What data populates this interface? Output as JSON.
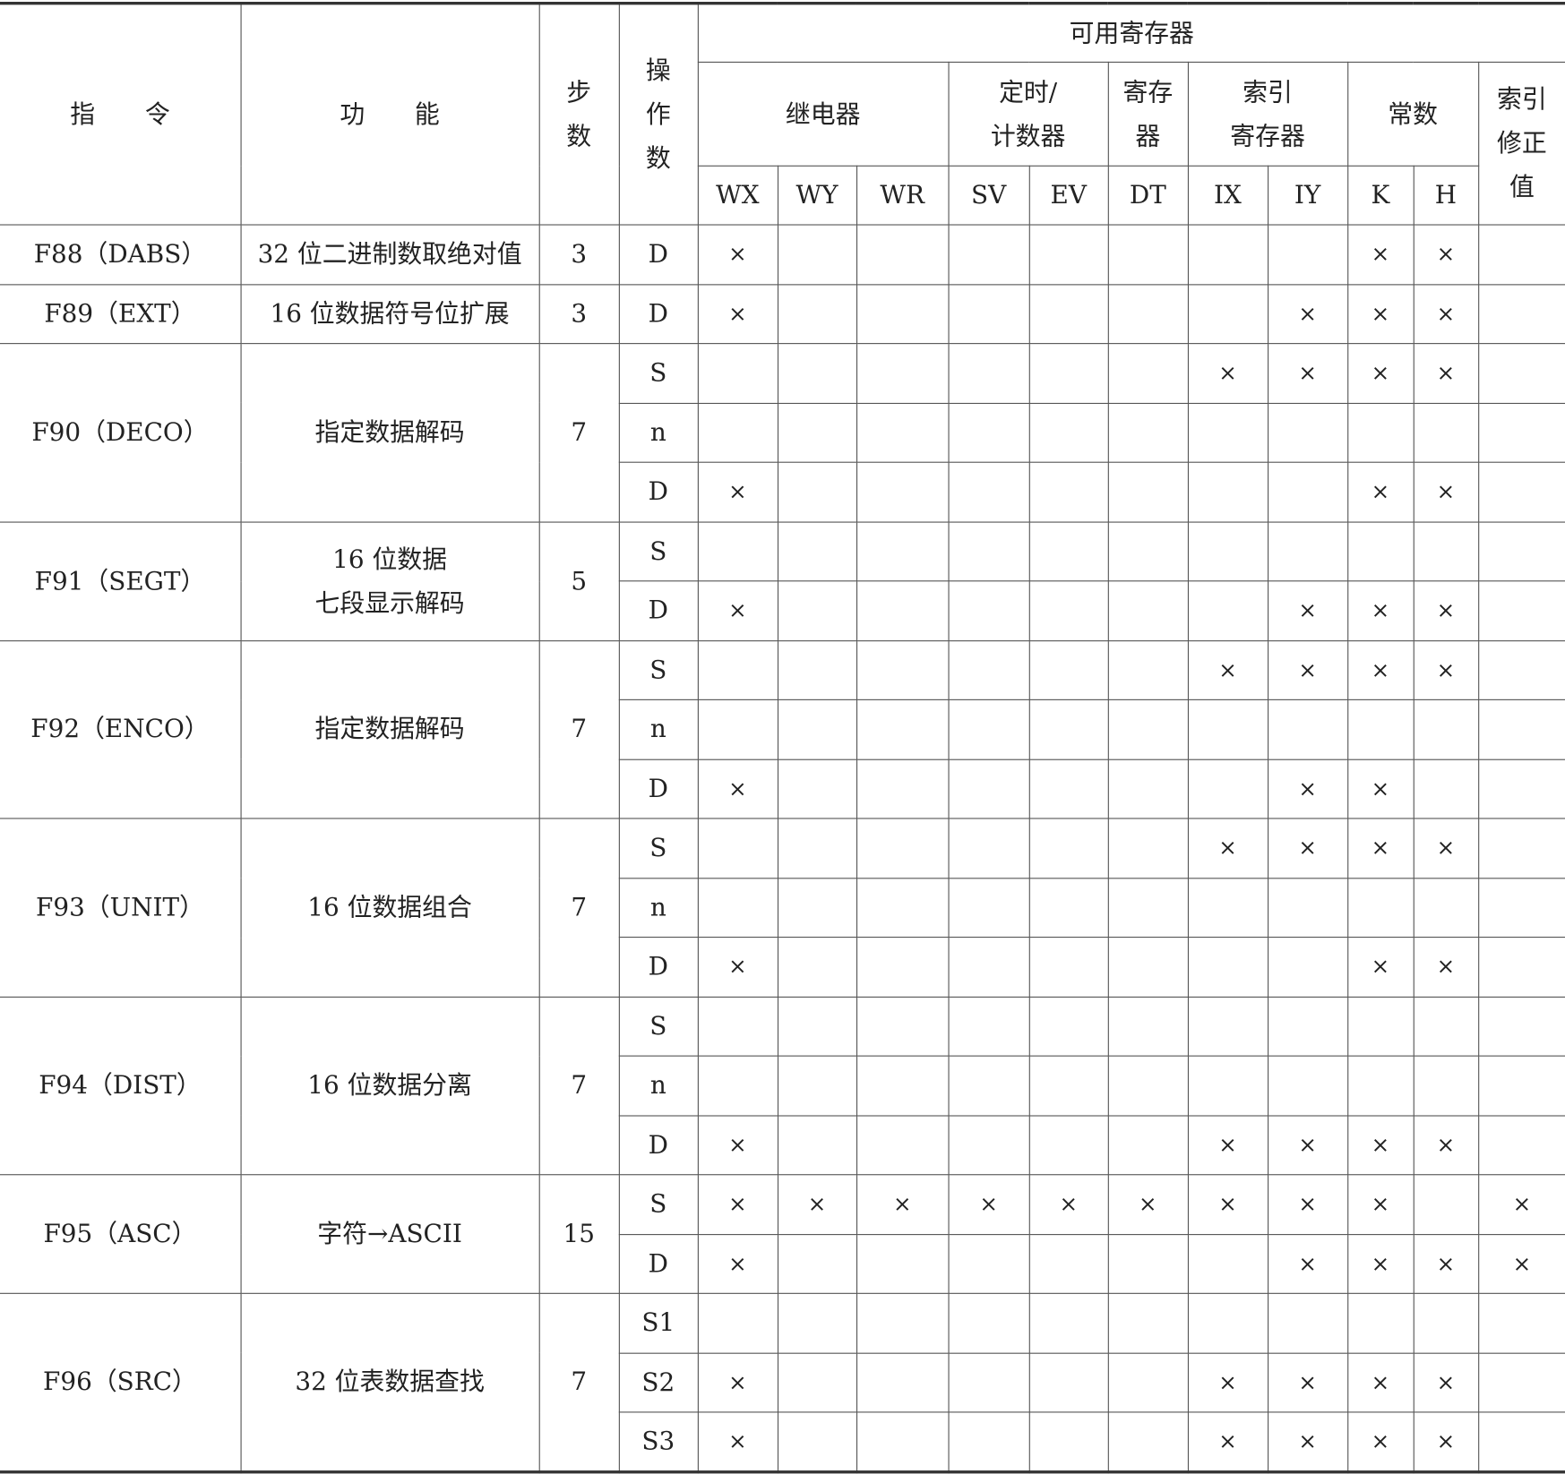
{
  "header": {
    "instruction": "指　　令",
    "function": "功　　能",
    "steps": "步\n数",
    "operand": "操\n作\n数",
    "available_registers": "可用寄存器",
    "groups": [
      {
        "label": "继电器",
        "span": 3
      },
      {
        "label": "定时/\n计数器",
        "span": 2
      },
      {
        "label": "寄存\n器",
        "span": 1
      },
      {
        "label": "索引\n寄存器",
        "span": 2
      },
      {
        "label": "常数",
        "span": 2
      }
    ],
    "index_modifier": "索引\n修正\n值",
    "registers": [
      "WX",
      "WY",
      "WR",
      "SV",
      "EV",
      "DT",
      "IX",
      "IY",
      "K",
      "H"
    ]
  },
  "mark": "×",
  "instructions": [
    {
      "name": "F88（DABS）",
      "function": "32 位二进制数取绝对值",
      "steps": "3",
      "operands": [
        {
          "op": "D",
          "marks": [
            "WX",
            "K",
            "H"
          ]
        }
      ]
    },
    {
      "name": "F89（EXT）",
      "function": "16 位数据符号位扩展",
      "steps": "3",
      "operands": [
        {
          "op": "D",
          "marks": [
            "WX",
            "IY",
            "K",
            "H"
          ]
        }
      ]
    },
    {
      "name": "F90（DECO）",
      "function": "指定数据解码",
      "steps": "7",
      "operands": [
        {
          "op": "S",
          "marks": [
            "IX",
            "IY",
            "K",
            "H"
          ]
        },
        {
          "op": "n",
          "marks": []
        },
        {
          "op": "D",
          "marks": [
            "WX",
            "K",
            "H"
          ]
        }
      ]
    },
    {
      "name": "F91（SEGT）",
      "function": "16 位数据\n七段显示解码",
      "steps": "5",
      "operands": [
        {
          "op": "S",
          "marks": []
        },
        {
          "op": "D",
          "marks": [
            "WX",
            "IY",
            "K",
            "H"
          ]
        }
      ]
    },
    {
      "name": "F92（ENCO）",
      "function": "指定数据解码",
      "steps": "7",
      "operands": [
        {
          "op": "S",
          "marks": [
            "IX",
            "IY",
            "K",
            "H"
          ]
        },
        {
          "op": "n",
          "marks": []
        },
        {
          "op": "D",
          "marks": [
            "WX",
            "IY",
            "K"
          ]
        }
      ]
    },
    {
      "name": "F93（UNIT）",
      "function": "16 位数据组合",
      "steps": "7",
      "operands": [
        {
          "op": "S",
          "marks": [
            "IX",
            "IY",
            "K",
            "H"
          ]
        },
        {
          "op": "n",
          "marks": []
        },
        {
          "op": "D",
          "marks": [
            "WX",
            "K",
            "H"
          ]
        }
      ]
    },
    {
      "name": "F94（DIST）",
      "function": "16 位数据分离",
      "steps": "7",
      "operands": [
        {
          "op": "S",
          "marks": []
        },
        {
          "op": "n",
          "marks": []
        },
        {
          "op": "D",
          "marks": [
            "WX",
            "IX",
            "IY",
            "K",
            "H"
          ]
        }
      ]
    },
    {
      "name": "F95（ASC）",
      "function": "字符→ASCII",
      "steps": "15",
      "operands": [
        {
          "op": "S",
          "marks": [
            "WX",
            "WY",
            "WR",
            "SV",
            "EV",
            "DT",
            "IX",
            "IY",
            "K",
            "IDX"
          ]
        },
        {
          "op": "D",
          "marks": [
            "WX",
            "IY",
            "K",
            "H",
            "IDX"
          ]
        }
      ]
    },
    {
      "name": "F96（SRC）",
      "function": "32 位表数据查找",
      "steps": "7",
      "operands": [
        {
          "op": "S1",
          "marks": []
        },
        {
          "op": "S2",
          "marks": [
            "WX",
            "IX",
            "IY",
            "K",
            "H"
          ]
        },
        {
          "op": "S3",
          "marks": [
            "WX",
            "IX",
            "IY",
            "K",
            "H"
          ]
        }
      ]
    }
  ]
}
